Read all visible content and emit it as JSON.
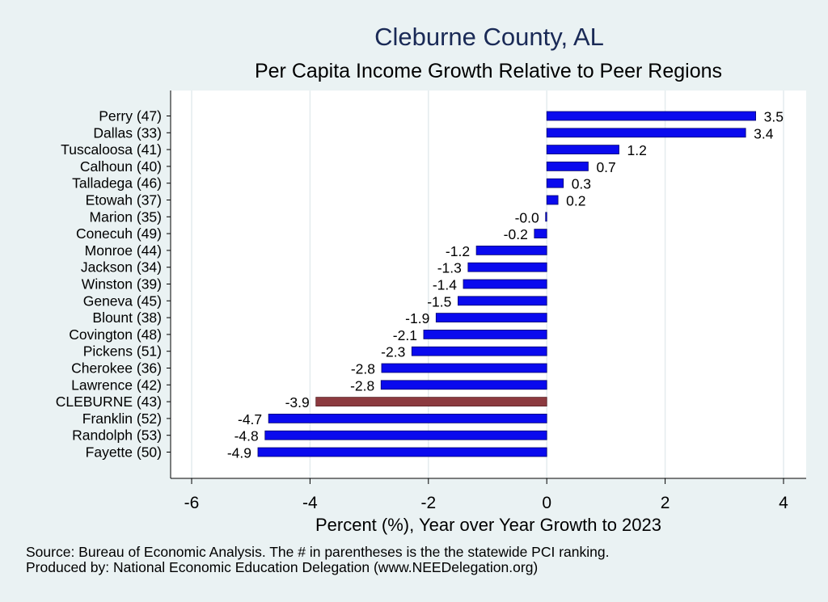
{
  "chart_data": {
    "type": "bar",
    "orientation": "horizontal",
    "title": "Cleburne County, AL",
    "subtitle": "Per Capita Income Growth Relative to Peer Regions",
    "xlabel": "Percent (%), Year over Year Growth to 2023",
    "xlim": [
      -6.6,
      4.4
    ],
    "xticks": [
      -6,
      -4,
      -2,
      0,
      2,
      4
    ],
    "categories": [
      "Perry (47)",
      "Dallas (33)",
      "Tuscaloosa (41)",
      "Calhoun (40)",
      "Talladega (46)",
      "Etowah (37)",
      "Marion (35)",
      "Conecuh (49)",
      "Monroe (44)",
      "Jackson (34)",
      "Winston (39)",
      "Geneva (45)",
      "Blount (38)",
      "Covington (48)",
      "Pickens (51)",
      "Cherokee (36)",
      "Lawrence (42)",
      "CLEBURNE (43)",
      "Franklin (52)",
      "Randolph (53)",
      "Fayette (50)"
    ],
    "values": [
      3.53,
      3.36,
      1.22,
      0.7,
      0.28,
      0.19,
      -0.02,
      -0.21,
      -1.19,
      -1.33,
      -1.41,
      -1.5,
      -1.87,
      -2.08,
      -2.28,
      -2.79,
      -2.8,
      -3.9,
      -4.7,
      -4.76,
      -4.88
    ],
    "value_labels": [
      "3.5",
      "3.4",
      "1.2",
      "0.7",
      "0.3",
      "0.2",
      "-0.0",
      "-0.2",
      "-1.2",
      "-1.3",
      "-1.4",
      "-1.5",
      "-1.9",
      "-2.1",
      "-2.3",
      "-2.8",
      "-2.8",
      "-3.9",
      "-4.7",
      "-4.8",
      "-4.9"
    ],
    "highlight": "CLEBURNE (43)",
    "colors": {
      "bar": "#0a0aee",
      "highlight": "#8c3a3f",
      "plot_bg": "#ffffff",
      "grid": "#e4ecee"
    },
    "grid": true
  },
  "footer": {
    "source": "Source: Bureau of Economic Analysis. The # in parentheses is the the statewide PCI ranking.",
    "produced": "Produced by: National Economic Education Delegation (www.NEEDelegation.org)"
  }
}
